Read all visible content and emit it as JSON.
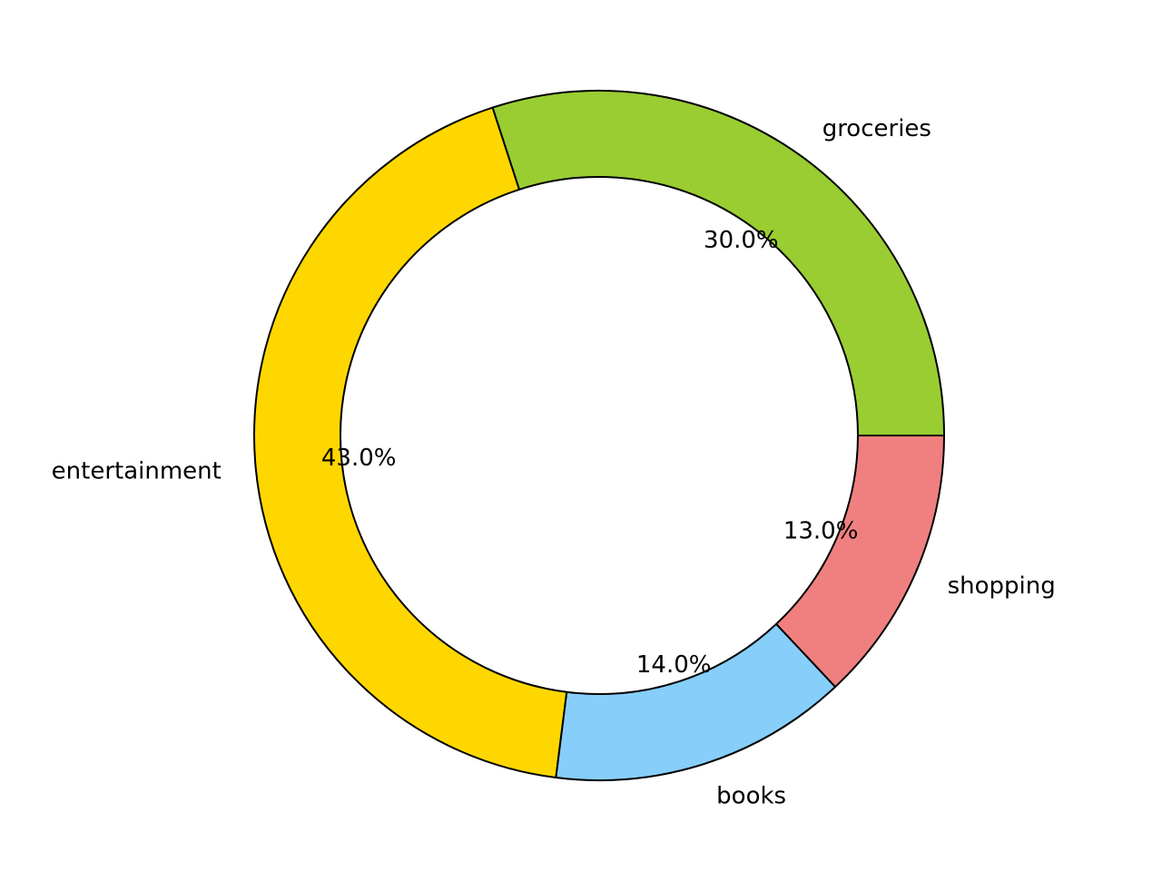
{
  "chart_data": {
    "type": "pie",
    "variant": "donut",
    "title": "",
    "start_angle_deg": 0,
    "direction": "counterclockwise",
    "categories": [
      "groceries",
      "entertainment",
      "books",
      "shopping"
    ],
    "values": [
      30.0,
      43.0,
      14.0,
      13.0
    ],
    "percent_labels": [
      "30.0%",
      "43.0%",
      "14.0%",
      "13.0%"
    ],
    "colors": [
      "#9ACD32",
      "#FFD700",
      "#87CEFA",
      "#F08080"
    ],
    "edge_color": "#000000",
    "legend": "none"
  }
}
